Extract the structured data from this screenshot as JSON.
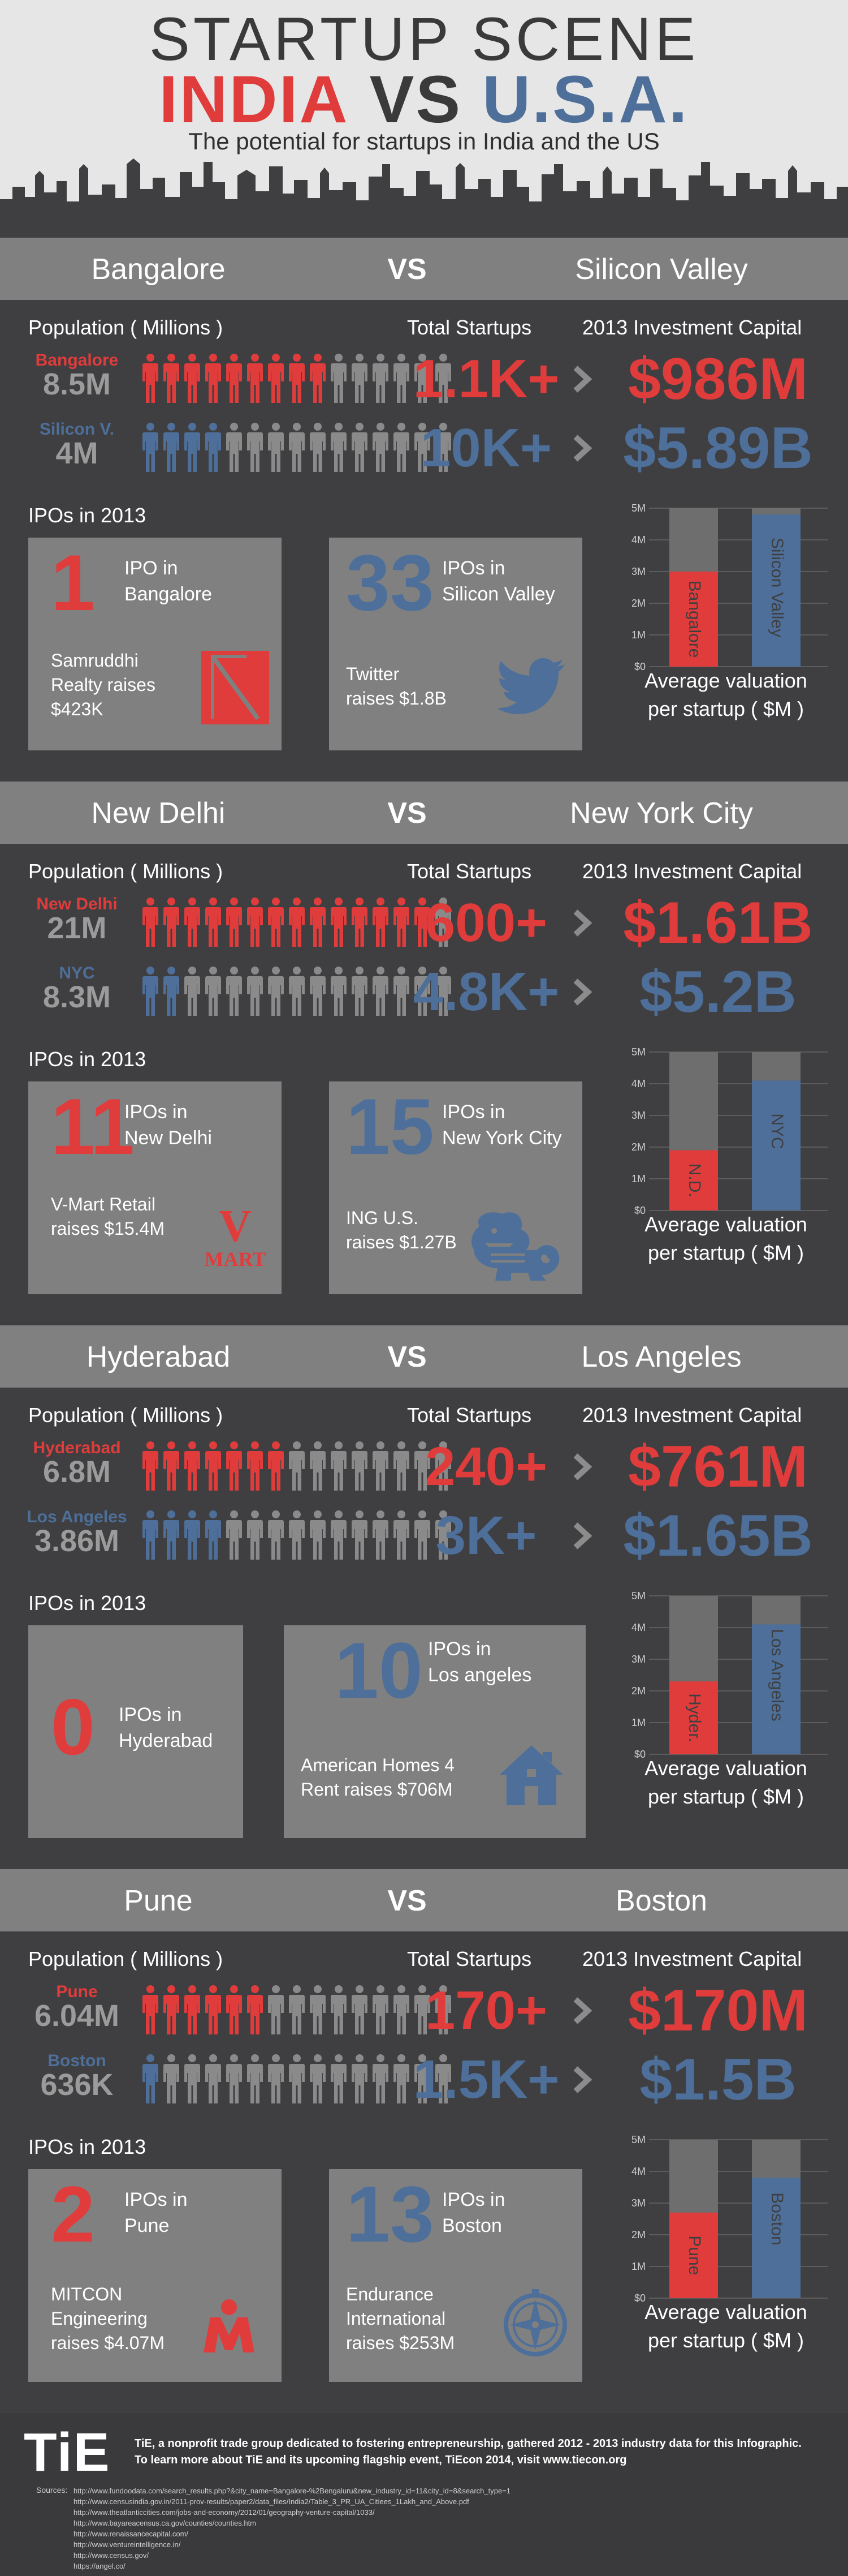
{
  "header": {
    "title": "STARTUP SCENE",
    "left": "INDIA",
    "vs": "VS",
    "right": "U.S.A.",
    "subtitle": "The potential for startups in India and the US"
  },
  "colors": {
    "red": "#e03c3c",
    "blue": "#4d6f99",
    "gray": "#808080",
    "dark": "#3f3f41"
  },
  "labels": {
    "population": "Population ( Millions )",
    "total_startups": "Total Startups",
    "investment": "2013 Investment Capital",
    "ipos": "IPOs in 2013",
    "avg_valuation_line1": "Average valuation",
    "avg_valuation_line2": "per startup ( $M )",
    "vs": "VS"
  },
  "sections": [
    {
      "india_city": "Bangalore",
      "us_city": "Silicon Valley",
      "india": {
        "label": "Bangalore",
        "population": "8.5M",
        "population_icons_filled": 9,
        "startups": "1.1K+",
        "capital": "$986M"
      },
      "us": {
        "label": "Silicon V.",
        "population": "4M",
        "population_icons_filled": 4,
        "startups": "10K+",
        "capital": "$5.89B"
      },
      "ipo_india": {
        "count": "1",
        "caption_1": "IPO in",
        "caption_2": "Bangalore",
        "desc_1": "Samruddhi",
        "desc_2": "Realty raises",
        "desc_3": "$423K",
        "logo_icon": "samruddhi-logo-icon"
      },
      "ipo_us": {
        "count": "33",
        "caption_1": "IPOs in",
        "caption_2": "Silicon Valley",
        "desc_1": "Twitter",
        "desc_2": "raises $1.8B",
        "desc_3": "",
        "logo_icon": "twitter-bird-icon"
      },
      "chart_data": {
        "type": "bar",
        "categories": [
          "Bangalore",
          "Silicon Valley"
        ],
        "values": [
          3,
          4.8
        ],
        "ylim": [
          0,
          5
        ],
        "ticks": [
          "$0",
          "1M",
          "2M",
          "3M",
          "4M",
          "5M"
        ]
      }
    },
    {
      "india_city": "New Delhi",
      "us_city": "New York City",
      "india": {
        "label": "New Delhi",
        "population": "21M",
        "population_icons_filled": 14,
        "startups": "600+",
        "capital": "$1.61B"
      },
      "us": {
        "label": "NYC",
        "population": "8.3M",
        "population_icons_filled": 2,
        "startups": "4.8K+",
        "capital": "$5.2B"
      },
      "ipo_india": {
        "count": "11",
        "caption_1": "IPOs in",
        "caption_2": "New Delhi",
        "desc_1": "V-Mart Retail",
        "desc_2": "raises $15.4M",
        "desc_3": "",
        "logo_icon": "vmart-logo-icon",
        "logo_text_1": "V",
        "logo_text_2": "MART"
      },
      "ipo_us": {
        "count": "15",
        "caption_1": "IPOs in",
        "caption_2": "New York City",
        "desc_1": "ING U.S.",
        "desc_2": "raises $1.27B",
        "desc_3": "",
        "logo_icon": "ing-lion-icon"
      },
      "chart_data": {
        "type": "bar",
        "categories": [
          "N.D.",
          "NYC"
        ],
        "values": [
          1.9,
          4.1
        ],
        "ylim": [
          0,
          5
        ],
        "ticks": [
          "$0",
          "1M",
          "2M",
          "3M",
          "4M",
          "5M"
        ]
      }
    },
    {
      "india_city": "Hyderabad",
      "us_city": "Los Angeles",
      "india": {
        "label": "Hyderabad",
        "population": "6.8M",
        "population_icons_filled": 7,
        "startups": "240+",
        "capital": "$761M"
      },
      "us": {
        "label": "Los Angeles",
        "population": "3.86M",
        "population_icons_filled": 4,
        "startups": "3K+",
        "capital": "$1.65B"
      },
      "ipo_india": {
        "count": "0",
        "caption_1": "IPOs in",
        "caption_2": "Hyderabad",
        "desc_1": "",
        "desc_2": "",
        "desc_3": "",
        "logo_icon": ""
      },
      "ipo_us": {
        "count": "10",
        "caption_1": "IPOs in",
        "caption_2": "Los angeles",
        "desc_1": "American Homes 4",
        "desc_2": "Rent raises $706M",
        "desc_3": "",
        "logo_icon": "house-icon"
      },
      "chart_data": {
        "type": "bar",
        "categories": [
          "Hyder.",
          "Los Angeles"
        ],
        "values": [
          2.3,
          4.1
        ],
        "ylim": [
          0,
          5
        ],
        "ticks": [
          "$0",
          "1M",
          "2M",
          "3M",
          "4M",
          "5M"
        ]
      }
    },
    {
      "india_city": "Pune",
      "us_city": "Boston",
      "india": {
        "label": "Pune",
        "population": "6.04M",
        "population_icons_filled": 6,
        "startups": "170+",
        "capital": "$170M"
      },
      "us": {
        "label": "Boston",
        "population": "636K",
        "population_icons_filled": 1,
        "startups": "1.5K+",
        "capital": "$1.5B"
      },
      "ipo_india": {
        "count": "2",
        "caption_1": "IPOs in",
        "caption_2": "Pune",
        "desc_1": "MITCON",
        "desc_2": "Engineering",
        "desc_3": "raises $4.07M",
        "logo_icon": "mitcon-logo-icon"
      },
      "ipo_us": {
        "count": "13",
        "caption_1": "IPOs in",
        "caption_2": "Boston",
        "desc_1": "Endurance",
        "desc_2": "International",
        "desc_3": "raises $253M",
        "logo_icon": "compass-icon"
      },
      "chart_data": {
        "type": "bar",
        "categories": [
          "Pune",
          "Boston"
        ],
        "values": [
          2.7,
          3.8
        ],
        "ylim": [
          0,
          5
        ],
        "ticks": [
          "$0",
          "1M",
          "2M",
          "3M",
          "4M",
          "5M"
        ]
      }
    }
  ],
  "footer": {
    "logo": "TiE",
    "note_1": "TiE, a nonprofit trade group dedicated to fostering entrepreneurship, gathered 2012 - 2013 industry data for this Infographic.",
    "note_2": "To learn more about TiE and its upcoming flagship event, TiEcon 2014, visit www.tiecon.org",
    "sources_label": "Sources:",
    "sources": [
      "http://www.fundoodata.com/search_results.php?&city_name=Bangalore-%2Bengaluru&new_industry_id=11&city_id=8&search_type=1",
      "http://www.censusindia.gov.in/2011-prov-results/paper2/data_files/India2/Table_3_PR_UA_Citiees_1Lakh_and_Above.pdf",
      "http://www.theatlanticcities.com/jobs-and-economy/2012/01/geography-venture-capital/1033/",
      "http://www.bayareacensus.ca.gov/counties/counties.htm",
      "http://www.renaissancecapital.com/",
      "http://www.ventureintelligence.in/",
      "http://www.census.gov/",
      "https://angel.co/"
    ]
  }
}
